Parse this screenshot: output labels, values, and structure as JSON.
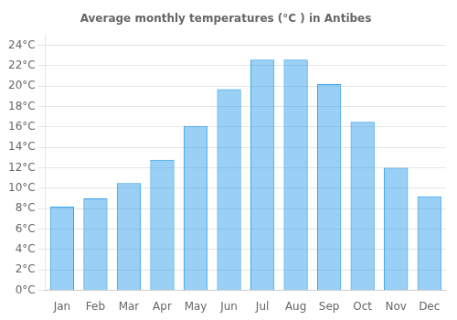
{
  "chart_data": {
    "type": "bar",
    "title": "Average monthly temperatures (°C ) in Antibes",
    "categories": [
      "Jan",
      "Feb",
      "Mar",
      "Apr",
      "May",
      "Jun",
      "Jul",
      "Aug",
      "Sep",
      "Oct",
      "Nov",
      "Dec"
    ],
    "values": [
      8.2,
      9.0,
      10.5,
      12.8,
      16.1,
      19.7,
      22.6,
      22.6,
      20.2,
      16.5,
      12.0,
      9.2
    ],
    "ylim": [
      0,
      25
    ],
    "yticks": [
      {
        "value": 0,
        "label": "0°C"
      },
      {
        "value": 2,
        "label": "2°C"
      },
      {
        "value": 4,
        "label": "4°C"
      },
      {
        "value": 6,
        "label": "6°C"
      },
      {
        "value": 8,
        "label": "8°C"
      },
      {
        "value": 10,
        "label": "10°C"
      },
      {
        "value": 12,
        "label": "12°C"
      },
      {
        "value": 14,
        "label": "14°C"
      },
      {
        "value": 16,
        "label": "16°C"
      },
      {
        "value": 18,
        "label": "18°C"
      },
      {
        "value": 20,
        "label": "20°C"
      },
      {
        "value": 22,
        "label": "22°C"
      },
      {
        "value": 24,
        "label": "24°C"
      }
    ],
    "grid": true
  }
}
